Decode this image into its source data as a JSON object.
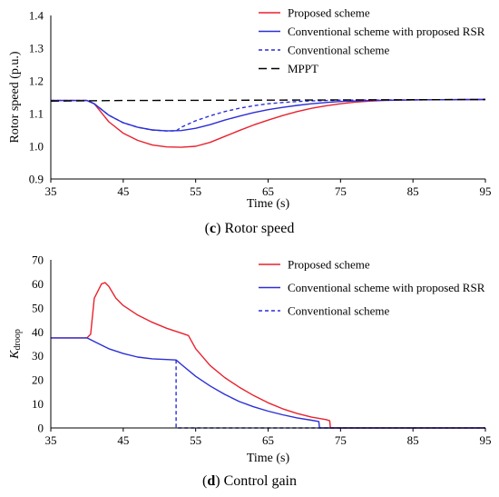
{
  "colors": {
    "proposed": "#e8222e",
    "conventional_rsr": "#2b2fd6",
    "conventional": "#2b2fd6",
    "mppt": "#000000",
    "axis": "#000000"
  },
  "captions": [
    {
      "letter": "c",
      "rest": " Rotor speed"
    },
    {
      "letter": "d",
      "rest": " Control gain"
    }
  ],
  "chart_data": [
    {
      "type": "line",
      "title": "",
      "xlabel": "Time (s)",
      "ylabel": "Rotor speed (p.u.)",
      "xlim": [
        35,
        95
      ],
      "ylim": [
        0.9,
        1.4
      ],
      "x_ticks": [
        "35",
        "45",
        "55",
        "65",
        "75",
        "85",
        "95"
      ],
      "y_ticks": [
        "0.9",
        "1.0",
        "1.1",
        "1.2",
        "1.3",
        "1.4"
      ],
      "legend": "top-right",
      "grid": false,
      "series": [
        {
          "name": "Proposed scheme",
          "color": "#e8222e",
          "style": "solid",
          "points": [
            [
              35,
              1.14
            ],
            [
              40,
              1.14
            ],
            [
              41,
              1.13
            ],
            [
              43,
              1.075
            ],
            [
              45,
              1.04
            ],
            [
              47,
              1.018
            ],
            [
              49,
              1.004
            ],
            [
              51,
              0.998
            ],
            [
              53,
              0.997
            ],
            [
              55,
              1.0
            ],
            [
              57,
              1.012
            ],
            [
              59,
              1.03
            ],
            [
              61,
              1.048
            ],
            [
              63,
              1.065
            ],
            [
              65,
              1.08
            ],
            [
              67,
              1.094
            ],
            [
              69,
              1.106
            ],
            [
              71,
              1.116
            ],
            [
              73,
              1.124
            ],
            [
              75,
              1.13
            ],
            [
              77,
              1.135
            ],
            [
              79,
              1.138
            ],
            [
              81,
              1.14
            ],
            [
              85,
              1.142
            ],
            [
              95,
              1.143
            ]
          ]
        },
        {
          "name": "Conventional scheme with proposed RSR",
          "color": "#2b2fd6",
          "style": "solid",
          "points": [
            [
              35,
              1.14
            ],
            [
              40,
              1.14
            ],
            [
              41,
              1.13
            ],
            [
              43,
              1.095
            ],
            [
              45,
              1.072
            ],
            [
              47,
              1.058
            ],
            [
              49,
              1.05
            ],
            [
              51,
              1.047
            ],
            [
              53,
              1.048
            ],
            [
              55,
              1.055
            ],
            [
              57,
              1.066
            ],
            [
              59,
              1.08
            ],
            [
              61,
              1.092
            ],
            [
              63,
              1.103
            ],
            [
              65,
              1.112
            ],
            [
              67,
              1.119
            ],
            [
              69,
              1.125
            ],
            [
              71,
              1.13
            ],
            [
              73,
              1.134
            ],
            [
              75,
              1.137
            ],
            [
              79,
              1.14
            ],
            [
              85,
              1.142
            ],
            [
              95,
              1.143
            ]
          ]
        },
        {
          "name": "Conventional scheme",
          "color": "#2b2fd6",
          "style": "dashed",
          "points": [
            [
              35,
              1.14
            ],
            [
              40,
              1.14
            ],
            [
              41,
              1.13
            ],
            [
              43,
              1.095
            ],
            [
              45,
              1.072
            ],
            [
              47,
              1.058
            ],
            [
              49,
              1.05
            ],
            [
              51,
              1.047
            ],
            [
              52.3,
              1.047
            ],
            [
              53,
              1.058
            ],
            [
              55,
              1.078
            ],
            [
              57,
              1.093
            ],
            [
              59,
              1.106
            ],
            [
              61,
              1.116
            ],
            [
              63,
              1.124
            ],
            [
              65,
              1.13
            ],
            [
              67,
              1.134
            ],
            [
              70,
              1.138
            ],
            [
              75,
              1.141
            ],
            [
              85,
              1.142
            ],
            [
              95,
              1.143
            ]
          ]
        },
        {
          "name": "MPPT",
          "color": "#000000",
          "style": "longdash",
          "points": [
            [
              35,
              1.138
            ],
            [
              45,
              1.14
            ],
            [
              65,
              1.141
            ],
            [
              95,
              1.143
            ]
          ]
        }
      ]
    },
    {
      "type": "line",
      "title": "",
      "xlabel": "Time (s)",
      "ylabel": "K",
      "ylabel_sub": "droop",
      "xlim": [
        35,
        95
      ],
      "ylim": [
        0,
        70
      ],
      "x_ticks": [
        "35",
        "45",
        "55",
        "65",
        "75",
        "85",
        "95"
      ],
      "y_ticks": [
        "0",
        "10",
        "20",
        "30",
        "40",
        "50",
        "60",
        "70"
      ],
      "legend": "top-right",
      "grid": false,
      "series": [
        {
          "name": "Proposed scheme",
          "color": "#e8222e",
          "style": "solid",
          "points": [
            [
              35,
              37.5
            ],
            [
              40,
              37.5
            ],
            [
              40.5,
              39
            ],
            [
              41,
              54
            ],
            [
              42,
              60
            ],
            [
              42.5,
              60.5
            ],
            [
              43,
              59
            ],
            [
              44,
              54
            ],
            [
              45,
              51
            ],
            [
              47,
              47
            ],
            [
              49,
              44
            ],
            [
              51,
              41.5
            ],
            [
              53,
              39.5
            ],
            [
              54,
              38.5
            ],
            [
              55,
              33
            ],
            [
              57,
              26
            ],
            [
              59,
              21
            ],
            [
              61,
              17
            ],
            [
              63,
              13.5
            ],
            [
              65,
              10.5
            ],
            [
              67,
              8
            ],
            [
              69,
              6
            ],
            [
              71,
              4.5
            ],
            [
              73,
              3.5
            ],
            [
              73.5,
              3
            ],
            [
              73.6,
              0
            ],
            [
              95,
              0
            ]
          ]
        },
        {
          "name": "Conventional scheme with proposed RSR",
          "color": "#2b2fd6",
          "style": "solid",
          "points": [
            [
              35,
              37.5
            ],
            [
              40,
              37.5
            ],
            [
              41,
              36
            ],
            [
              43,
              33
            ],
            [
              45,
              31
            ],
            [
              47,
              29.5
            ],
            [
              49,
              28.8
            ],
            [
              51,
              28.5
            ],
            [
              52.3,
              28.3
            ],
            [
              53,
              26.5
            ],
            [
              55,
              21.5
            ],
            [
              57,
              17.5
            ],
            [
              59,
              14
            ],
            [
              61,
              11
            ],
            [
              63,
              8.8
            ],
            [
              65,
              7
            ],
            [
              67,
              5.5
            ],
            [
              69,
              4.2
            ],
            [
              71,
              3.2
            ],
            [
              72,
              2.7
            ],
            [
              72.1,
              0
            ],
            [
              95,
              0
            ]
          ]
        },
        {
          "name": "Conventional scheme",
          "color": "#2b2fd6",
          "style": "dashed",
          "points": [
            [
              52.3,
              28.3
            ],
            [
              52.3,
              0
            ],
            [
              95,
              0
            ]
          ]
        }
      ]
    }
  ]
}
